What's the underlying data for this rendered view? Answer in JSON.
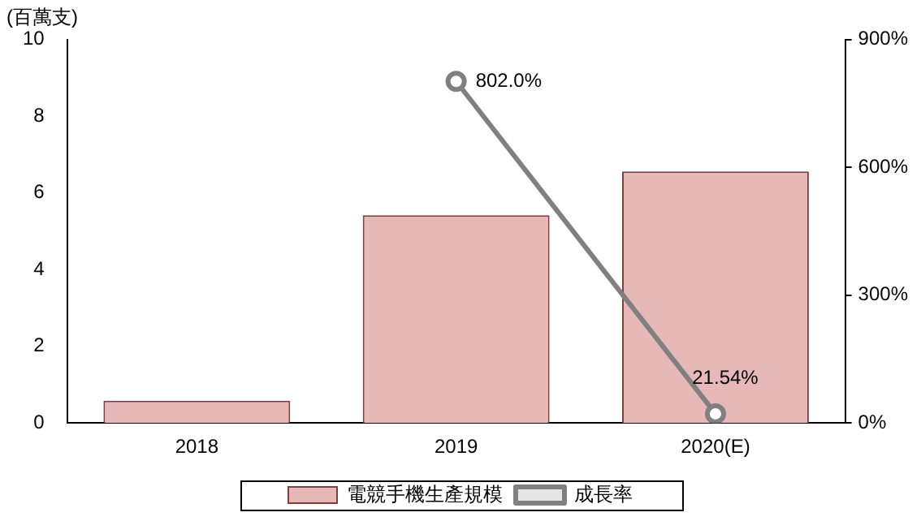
{
  "chart_data": {
    "type": "bar",
    "ylabel": "(百萬支)",
    "categories": [
      "2018",
      "2019",
      "2020(E)"
    ],
    "series": [
      {
        "name": "電競手機生產規模",
        "color": "#e6b8b7",
        "values": [
          0.58,
          5.42,
          6.56
        ]
      },
      {
        "name": "成長率",
        "type": "line",
        "axis": "y2",
        "color": "#808080",
        "values": [
          null,
          802.0,
          21.54
        ],
        "value_labels": [
          null,
          "802.0%",
          "21.54%"
        ],
        "marker": "circle"
      }
    ],
    "ylim": [
      0,
      10
    ],
    "yticks": [
      0,
      2,
      4,
      6,
      8,
      10
    ],
    "y2lim": [
      0,
      900
    ],
    "y2ticks": [
      {
        "value": 0,
        "label": "0%"
      },
      {
        "value": 300,
        "label": "300%"
      },
      {
        "value": 600,
        "label": "600%"
      },
      {
        "value": 900,
        "label": "900%"
      }
    ],
    "grid": false,
    "legend": "bottom"
  }
}
